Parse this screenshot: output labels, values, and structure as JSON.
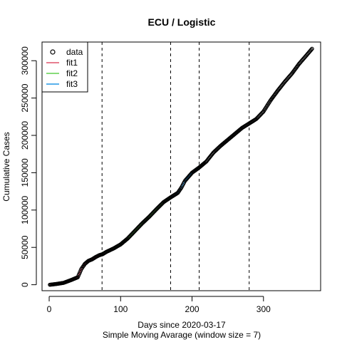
{
  "chart_data": {
    "type": "line",
    "title": "ECU / Logistic",
    "xlabel": "Days since 2020-03-17",
    "xlabel2": "Simple Moving Avarage (window size = 7)",
    "ylabel": "Cumulative Cases",
    "xlim": [
      -10,
      380
    ],
    "ylim": [
      -8000,
      325000
    ],
    "x_ticks": [
      0,
      100,
      200,
      300
    ],
    "x_tick_labels": [
      "0",
      "100",
      "200",
      "300"
    ],
    "y_ticks": [
      0,
      50000,
      100000,
      150000,
      200000,
      250000,
      300000
    ],
    "y_tick_labels": [
      "0",
      "50000",
      "100000",
      "150000",
      "200000",
      "250000",
      "300000"
    ],
    "vlines": [
      74,
      170,
      210,
      280
    ],
    "legend": {
      "position": "top-left",
      "items": [
        {
          "label": "data",
          "symbol": "circle",
          "color": "#000000"
        },
        {
          "label": "fit1",
          "symbol": "line",
          "color": "#DF536B"
        },
        {
          "label": "fit2",
          "symbol": "line",
          "color": "#61D04F"
        },
        {
          "label": "fit3",
          "symbol": "line",
          "color": "#2297E6"
        }
      ]
    },
    "data_series": {
      "name": "data",
      "color": "#000000",
      "points": [
        [
          1,
          0
        ],
        [
          10,
          1000
        ],
        [
          20,
          2500
        ],
        [
          30,
          6000
        ],
        [
          40,
          10000
        ],
        [
          45,
          21000
        ],
        [
          50,
          28000
        ],
        [
          55,
          32000
        ],
        [
          60,
          34000
        ],
        [
          65,
          37000
        ],
        [
          70,
          39500
        ],
        [
          75,
          41000
        ],
        [
          80,
          44000
        ],
        [
          90,
          48500
        ],
        [
          100,
          54000
        ],
        [
          110,
          62000
        ],
        [
          120,
          72000
        ],
        [
          130,
          82000
        ],
        [
          140,
          91000
        ],
        [
          150,
          101000
        ],
        [
          160,
          110500
        ],
        [
          170,
          117000
        ],
        [
          180,
          123000
        ],
        [
          185,
          130000
        ],
        [
          190,
          139000
        ],
        [
          200,
          150000
        ],
        [
          210,
          157000
        ],
        [
          220,
          165000
        ],
        [
          230,
          177000
        ],
        [
          240,
          186000
        ],
        [
          250,
          194000
        ],
        [
          260,
          202000
        ],
        [
          270,
          210000
        ],
        [
          280,
          216000
        ],
        [
          290,
          222000
        ],
        [
          300,
          232000
        ],
        [
          310,
          247000
        ],
        [
          320,
          260000
        ],
        [
          330,
          272000
        ],
        [
          340,
          283000
        ],
        [
          350,
          296000
        ],
        [
          360,
          307000
        ],
        [
          368,
          316000
        ]
      ]
    },
    "series": [
      {
        "name": "fit1",
        "color": "#DF536B",
        "x": [
          1,
          10,
          20,
          30,
          40,
          45,
          50,
          55,
          60,
          65,
          70,
          74
        ],
        "values": [
          0,
          1000,
          2500,
          6000,
          10000,
          21000,
          28000,
          32000,
          34000,
          37000,
          39500,
          41000
        ]
      },
      {
        "name": "fit2",
        "color": "#61D04F",
        "x": [
          74,
          80,
          90,
          100,
          110,
          120,
          130,
          140,
          150,
          160,
          170
        ],
        "values": [
          43000,
          45000,
          48500,
          54000,
          62000,
          72000,
          82000,
          91000,
          101000,
          110500,
          117000
        ]
      },
      {
        "name": "fit3",
        "color": "#2297E6",
        "x": [
          170,
          175,
          180,
          185,
          190,
          200,
          210
        ],
        "values": [
          117000,
          119000,
          123000,
          130000,
          139000,
          150000,
          157000
        ]
      }
    ]
  }
}
